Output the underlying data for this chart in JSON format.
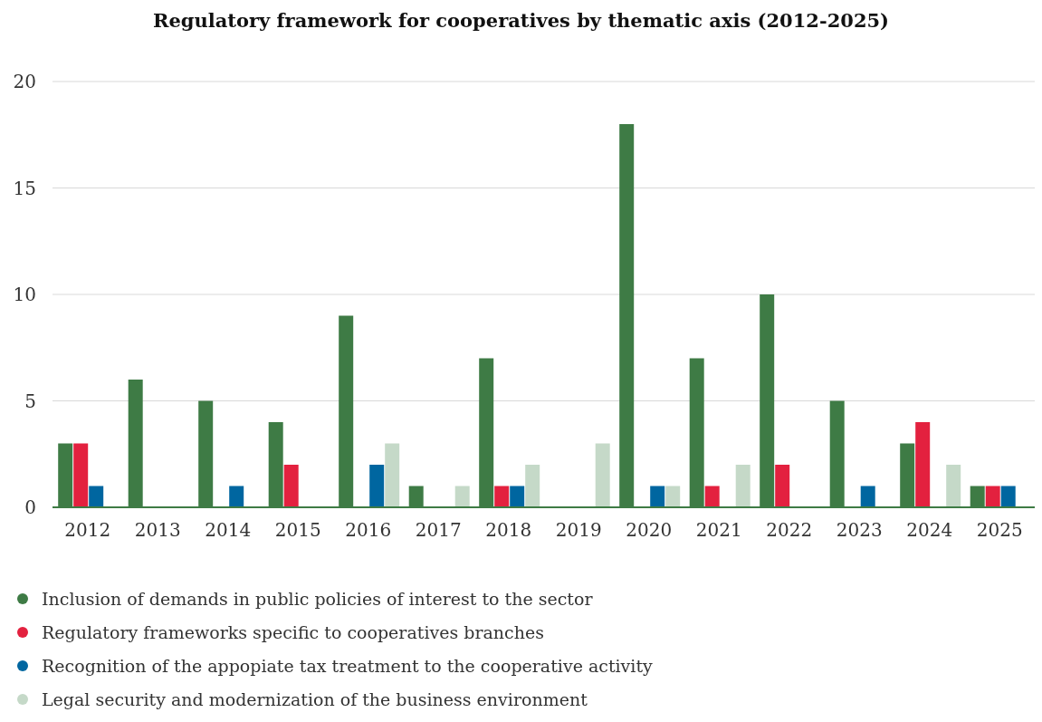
{
  "chart_data": {
    "type": "bar",
    "title": "Regulatory framework for cooperatives by thematic axis (2012-2025)",
    "categories": [
      "2012",
      "2013",
      "2014",
      "2015",
      "2016",
      "2017",
      "2018",
      "2019",
      "2020",
      "2021",
      "2022",
      "2023",
      "2024",
      "2025"
    ],
    "series": [
      {
        "name": "Inclusion of demands in public policies of interest to the sector",
        "color": "#3e7b45",
        "values": [
          3,
          6,
          5,
          4,
          9,
          1,
          7,
          0,
          18,
          7,
          10,
          5,
          3,
          1
        ]
      },
      {
        "name": "Regulatory frameworks specific to cooperatives branches",
        "color": "#e3213f",
        "values": [
          3,
          0,
          0,
          2,
          0,
          0,
          1,
          0,
          0,
          1,
          2,
          0,
          4,
          1
        ]
      },
      {
        "name": "Recognition of the appopiate tax treatment to the cooperative activity",
        "color": "#0066a0",
        "values": [
          1,
          0,
          1,
          0,
          2,
          0,
          1,
          0,
          1,
          0,
          0,
          1,
          0,
          1
        ]
      },
      {
        "name": "Legal security and modernization of the business environment",
        "color": "#c5d9c8",
        "values": [
          0,
          0,
          0,
          0,
          3,
          1,
          2,
          3,
          1,
          2,
          0,
          0,
          2,
          0
        ]
      }
    ],
    "ylim": [
      0,
      20
    ],
    "yticks": [
      0,
      5,
      10,
      15,
      20
    ],
    "grid": "y",
    "legend": "bottom"
  }
}
